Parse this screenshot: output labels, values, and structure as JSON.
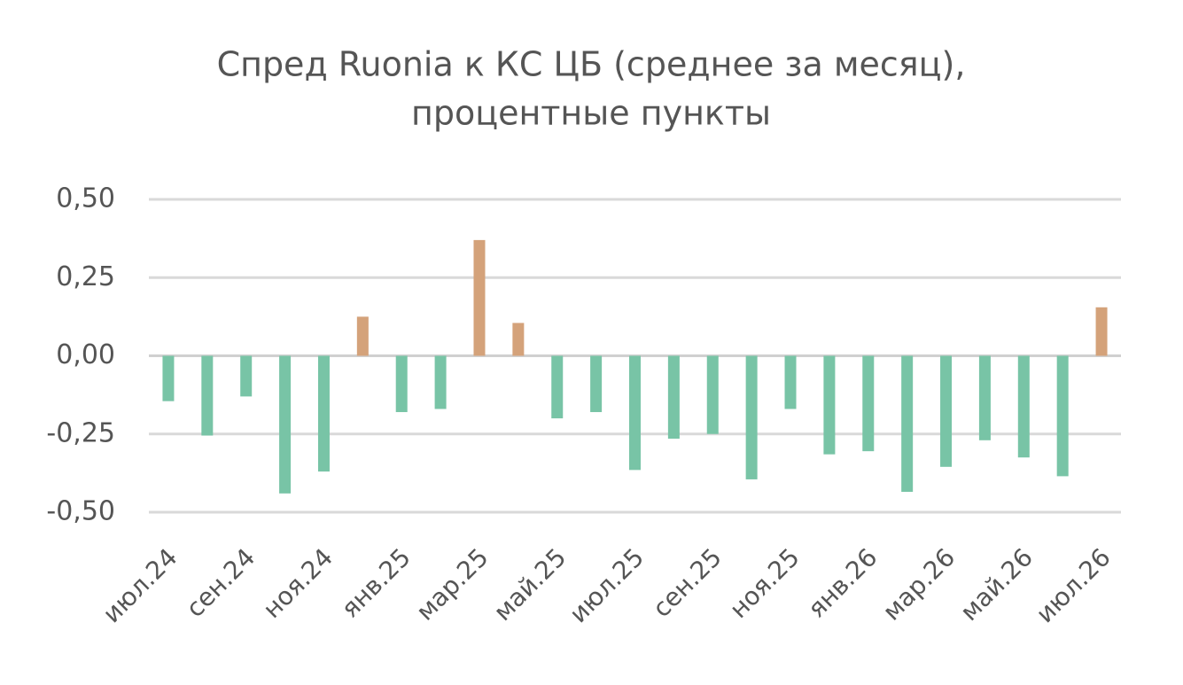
{
  "chart_data": {
    "type": "bar",
    "title": "Спред Ruonia к КС ЦБ (среднее за месяц),",
    "subtitle": "процентные пункты",
    "categories": [
      "июл.24",
      null,
      "сен.24",
      null,
      "ноя.24",
      null,
      "янв.25",
      null,
      "мар.25",
      null,
      "май.25",
      null,
      "июл.25",
      null,
      "сен.25",
      null,
      "ноя.25",
      null,
      "янв.26",
      null,
      "мар.26",
      null,
      "май.26",
      null,
      "июл.26"
    ],
    "values": [
      -0.145,
      -0.255,
      -0.13,
      -0.44,
      -0.37,
      0.125,
      -0.18,
      -0.17,
      0.37,
      0.105,
      -0.2,
      -0.18,
      -0.365,
      -0.265,
      -0.25,
      -0.395,
      -0.17,
      -0.315,
      -0.305,
      -0.435,
      -0.355,
      -0.27,
      -0.325,
      -0.385,
      0.155
    ],
    "positive_color": "#d4a27a",
    "negative_color": "#78c4a6",
    "ylim": [
      -0.5,
      0.5
    ],
    "yticks": [
      {
        "value": -0.5,
        "label": "-0,50"
      },
      {
        "value": -0.25,
        "label": "-0,25"
      },
      {
        "value": 0,
        "label": "0,00"
      },
      {
        "value": 0.25,
        "label": "0,25"
      },
      {
        "value": 0.5,
        "label": "0,50"
      }
    ],
    "grid": true
  }
}
